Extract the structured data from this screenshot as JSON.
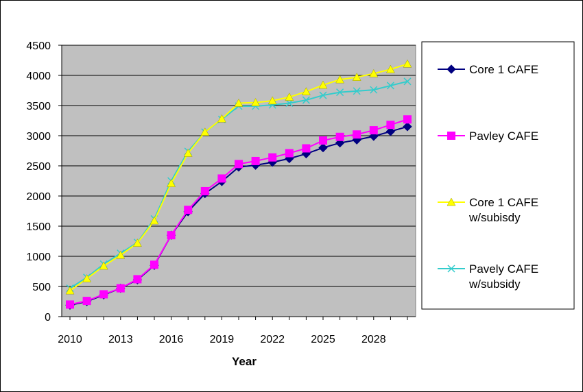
{
  "chart_data": {
    "type": "line",
    "title": "",
    "xlabel": "Year",
    "ylabel": "",
    "xlim": [
      2010,
      2030
    ],
    "ylim": [
      0,
      4500
    ],
    "y_ticks": [
      0,
      500,
      1000,
      1500,
      2000,
      2500,
      3000,
      3500,
      4000,
      4500
    ],
    "x_ticks": [
      2010,
      2013,
      2016,
      2019,
      2022,
      2025,
      2028
    ],
    "x_tick_labels": [
      "2010",
      "2013",
      "2016",
      "2019",
      "2022",
      "2025",
      "2028"
    ],
    "y_tick_labels": [
      "0",
      "500",
      "1000",
      "1500",
      "2000",
      "2500",
      "3000",
      "3500",
      "4000",
      "4500"
    ],
    "grid": true,
    "plot_background": "#c0c0c0",
    "legend_position": "right",
    "x": [
      2010,
      2011,
      2012,
      2013,
      2014,
      2015,
      2016,
      2017,
      2018,
      2019,
      2020,
      2021,
      2022,
      2023,
      2024,
      2025,
      2026,
      2027,
      2028,
      2029,
      2030
    ],
    "series": [
      {
        "name": "Core 1 CAFE",
        "color": "#000080",
        "marker": "diamond",
        "values": [
          190,
          250,
          360,
          470,
          610,
          850,
          1350,
          1740,
          2040,
          2240,
          2480,
          2510,
          2560,
          2620,
          2700,
          2800,
          2880,
          2930,
          2990,
          3070,
          3150
        ]
      },
      {
        "name": "Pavley CAFE",
        "color": "#ff00ff",
        "marker": "square",
        "values": [
          200,
          260,
          370,
          470,
          620,
          860,
          1350,
          1770,
          2080,
          2290,
          2530,
          2580,
          2640,
          2710,
          2790,
          2920,
          2980,
          3020,
          3090,
          3180,
          3270
        ]
      },
      {
        "name_lines": [
          "Core 1 CAFE",
          "w/subisdy"
        ],
        "color": "#ffff00",
        "marker": "triangle",
        "values": [
          430,
          630,
          840,
          1020,
          1220,
          1590,
          2210,
          2710,
          3060,
          3280,
          3540,
          3550,
          3580,
          3640,
          3730,
          3840,
          3930,
          3970,
          4030,
          4100,
          4190
        ]
      },
      {
        "name_lines": [
          "Pavely CAFE",
          "w/subsidy"
        ],
        "color": "#33cccc",
        "marker": "x",
        "values": [
          470,
          650,
          870,
          1050,
          1230,
          1620,
          2250,
          2740,
          3060,
          3270,
          3490,
          3490,
          3510,
          3540,
          3590,
          3670,
          3720,
          3740,
          3760,
          3830,
          3900
        ]
      }
    ]
  }
}
